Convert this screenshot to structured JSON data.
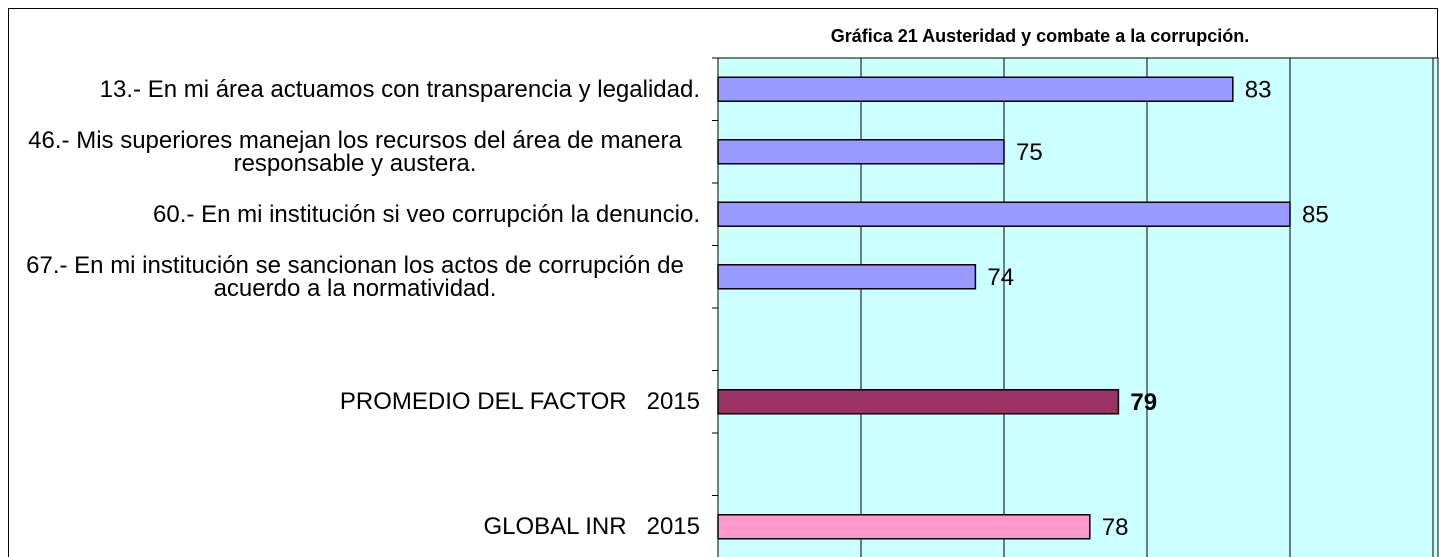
{
  "chart_data": {
    "type": "barh",
    "title": "Gráfica 21 Austeridad y combate a la corrupción.",
    "categories": [
      "13.- En mi área actuamos con transparencia y legalidad.",
      "46.- Mis superiores manejan los recursos del área de manera responsable y austera.",
      "60.- En mi institución si veo corrupción la denuncio.",
      "67.- En mi institución se sancionan los actos de corrupción de acuerdo a la normatividad.",
      null,
      "PROMEDIO DEL FACTOR   2015",
      null,
      "GLOBAL INR   2015"
    ],
    "values": [
      83,
      75,
      85,
      74,
      null,
      79,
      null,
      78
    ],
    "colors": [
      "#9999ff",
      "#9999ff",
      "#9999ff",
      "#9999ff",
      null,
      "#993366",
      null,
      "#ff99cc"
    ],
    "xlim": [
      65,
      90
    ],
    "xticks": [
      65,
      70,
      75,
      80,
      85,
      90
    ],
    "grid": true,
    "background": "#ccffff"
  }
}
